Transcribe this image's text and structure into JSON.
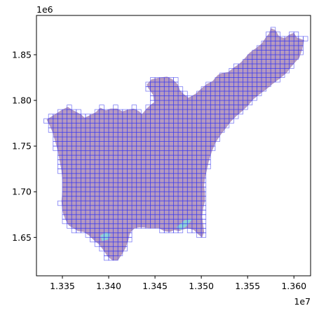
{
  "chart_data": {
    "type": "map",
    "title": "",
    "xlabel": "",
    "ylabel": "",
    "x_offset_label": "1e7",
    "y_offset_label": "1e6",
    "xlim": [
      13.322,
      13.618
    ],
    "ylim": [
      1.608,
      1.893
    ],
    "x_ticks": [
      13.35,
      13.4,
      13.45,
      13.5,
      13.55,
      13.6
    ],
    "x_tick_labels": [
      "1.335",
      "1.340",
      "1.345",
      "1.350",
      "1.355",
      "1.360"
    ],
    "y_ticks": [
      1.65,
      1.7,
      1.75,
      1.8,
      1.85
    ],
    "y_tick_labels": [
      "1.65",
      "1.70",
      "1.75",
      "1.80",
      "1.85"
    ],
    "grid": false,
    "colors": {
      "region_fill": "#b69ac0",
      "water_fill": "#8fd3d6",
      "cell_stroke": "#3b3bf0",
      "axes": "#000000"
    },
    "region_outline": [
      [
        13.333,
        1.779
      ],
      [
        13.35,
        1.79
      ],
      [
        13.356,
        1.793
      ],
      [
        13.36,
        1.79
      ],
      [
        13.366,
        1.787
      ],
      [
        13.371,
        1.784
      ],
      [
        13.374,
        1.781
      ],
      [
        13.38,
        1.784
      ],
      [
        13.386,
        1.787
      ],
      [
        13.391,
        1.792
      ],
      [
        13.397,
        1.789
      ],
      [
        13.402,
        1.791
      ],
      [
        13.409,
        1.791
      ],
      [
        13.415,
        1.788
      ],
      [
        13.421,
        1.79
      ],
      [
        13.427,
        1.791
      ],
      [
        13.433,
        1.788
      ],
      [
        13.436,
        1.785
      ],
      [
        13.441,
        1.791
      ],
      [
        13.445,
        1.795
      ],
      [
        13.449,
        1.798
      ],
      [
        13.448,
        1.806
      ],
      [
        13.443,
        1.813
      ],
      [
        13.441,
        1.817
      ],
      [
        13.446,
        1.823
      ],
      [
        13.455,
        1.825
      ],
      [
        13.463,
        1.826
      ],
      [
        13.469,
        1.823
      ],
      [
        13.475,
        1.817
      ],
      [
        13.477,
        1.811
      ],
      [
        13.481,
        1.807
      ],
      [
        13.486,
        1.803
      ],
      [
        13.49,
        1.805
      ],
      [
        13.495,
        1.808
      ],
      [
        13.5,
        1.813
      ],
      [
        13.506,
        1.818
      ],
      [
        13.512,
        1.821
      ],
      [
        13.518,
        1.828
      ],
      [
        13.523,
        1.83
      ],
      [
        13.529,
        1.831
      ],
      [
        13.535,
        1.836
      ],
      [
        13.541,
        1.84
      ],
      [
        13.546,
        1.845
      ],
      [
        13.552,
        1.852
      ],
      [
        13.56,
        1.858
      ],
      [
        13.565,
        1.862
      ],
      [
        13.569,
        1.868
      ],
      [
        13.573,
        1.873
      ],
      [
        13.575,
        1.879
      ],
      [
        13.58,
        1.877
      ],
      [
        13.584,
        1.87
      ],
      [
        13.59,
        1.868
      ],
      [
        13.595,
        1.872
      ],
      [
        13.6,
        1.874
      ],
      [
        13.603,
        1.869
      ],
      [
        13.608,
        1.867
      ],
      [
        13.611,
        1.866
      ],
      [
        13.609,
        1.856
      ],
      [
        13.606,
        1.847
      ],
      [
        13.598,
        1.838
      ],
      [
        13.592,
        1.83
      ],
      [
        13.585,
        1.824
      ],
      [
        13.577,
        1.818
      ],
      [
        13.57,
        1.812
      ],
      [
        13.562,
        1.806
      ],
      [
        13.556,
        1.801
      ],
      [
        13.551,
        1.795
      ],
      [
        13.545,
        1.789
      ],
      [
        13.538,
        1.783
      ],
      [
        13.532,
        1.777
      ],
      [
        13.526,
        1.769
      ],
      [
        13.52,
        1.761
      ],
      [
        13.515,
        1.753
      ],
      [
        13.511,
        1.743
      ],
      [
        13.508,
        1.733
      ],
      [
        13.506,
        1.724
      ],
      [
        13.504,
        1.715
      ],
      [
        13.503,
        1.707
      ],
      [
        13.504,
        1.698
      ],
      [
        13.504,
        1.69
      ],
      [
        13.502,
        1.682
      ],
      [
        13.501,
        1.673
      ],
      [
        13.502,
        1.664
      ],
      [
        13.503,
        1.656
      ],
      [
        13.501,
        1.65
      ],
      [
        13.497,
        1.653
      ],
      [
        13.492,
        1.658
      ],
      [
        13.486,
        1.66
      ],
      [
        13.481,
        1.659
      ],
      [
        13.476,
        1.657
      ],
      [
        13.471,
        1.658
      ],
      [
        13.466,
        1.656
      ],
      [
        13.46,
        1.657
      ],
      [
        13.454,
        1.66
      ],
      [
        13.449,
        1.66
      ],
      [
        13.443,
        1.66
      ],
      [
        13.438,
        1.661
      ],
      [
        13.433,
        1.661
      ],
      [
        13.428,
        1.66
      ],
      [
        13.423,
        1.655
      ],
      [
        13.421,
        1.646
      ],
      [
        13.418,
        1.638
      ],
      [
        13.414,
        1.631
      ],
      [
        13.41,
        1.625
      ],
      [
        13.404,
        1.625
      ],
      [
        13.399,
        1.629
      ],
      [
        13.395,
        1.635
      ],
      [
        13.39,
        1.642
      ],
      [
        13.384,
        1.647
      ],
      [
        13.379,
        1.652
      ],
      [
        13.373,
        1.656
      ],
      [
        13.367,
        1.657
      ],
      [
        13.362,
        1.66
      ],
      [
        13.357,
        1.663
      ],
      [
        13.353,
        1.67
      ],
      [
        13.35,
        1.679
      ],
      [
        13.349,
        1.69
      ],
      [
        13.35,
        1.7
      ],
      [
        13.35,
        1.712
      ],
      [
        13.349,
        1.723
      ],
      [
        13.347,
        1.734
      ],
      [
        13.345,
        1.745
      ],
      [
        13.342,
        1.756
      ],
      [
        13.339,
        1.766
      ],
      [
        13.336,
        1.773
      ],
      [
        13.333,
        1.779
      ]
    ],
    "water_patches": [
      [
        [
          13.391,
          1.652
        ],
        [
          13.397,
          1.656
        ],
        [
          13.402,
          1.654
        ],
        [
          13.4,
          1.648
        ],
        [
          13.393,
          1.646
        ]
      ],
      [
        [
          13.473,
          1.661
        ],
        [
          13.482,
          1.669
        ],
        [
          13.49,
          1.67
        ],
        [
          13.485,
          1.663
        ],
        [
          13.478,
          1.658
        ]
      ]
    ],
    "grid_cell_size": 0.005
  }
}
